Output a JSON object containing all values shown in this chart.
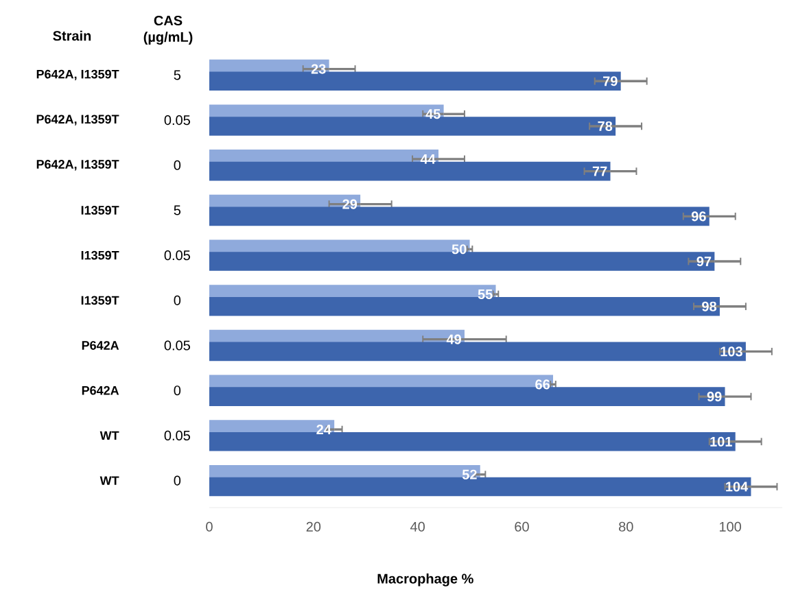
{
  "chart_data": {
    "type": "bar",
    "orientation": "horizontal",
    "xlabel": "Macrophage %",
    "categories": [
      "P642A, I1359T",
      "P642A, I1359T",
      "P642A, I1359T",
      "I1359T",
      "I1359T",
      "I1359T",
      "P642A",
      "P642A",
      "WT",
      "WT"
    ],
    "annotations": [
      "Strain",
      "CAS (µg/mL)",
      "5",
      "0.05",
      "0",
      "5",
      "0.05",
      "0",
      "0.05",
      "0",
      "0.05",
      "0"
    ],
    "series": [
      {
        "color": "#8faadc",
        "values": [
          23,
          45,
          44,
          29,
          50,
          55,
          49,
          66,
          24,
          52
        ],
        "errors": [
          5,
          4,
          5,
          6,
          0.5,
          0.5,
          8,
          0.5,
          1.5,
          1
        ]
      },
      {
        "color": "#3d65ad",
        "values": [
          79,
          78,
          77,
          96,
          97,
          98,
          103,
          99,
          101,
          104
        ],
        "errors": [
          5,
          5,
          5,
          5,
          5,
          5,
          5,
          5,
          5,
          5
        ]
      }
    ],
    "xlim": [
      0,
      110
    ],
    "xticks": [
      0,
      20,
      40,
      60,
      80,
      100
    ],
    "data_labels": true,
    "grid": false
  }
}
